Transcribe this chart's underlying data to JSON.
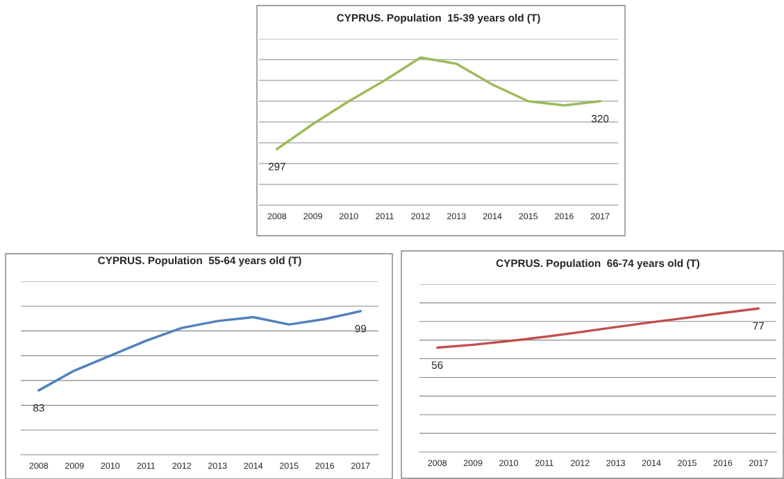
{
  "chart_data": [
    {
      "type": "line",
      "title": "CYPRUS. Population  15-39 years old (T)",
      "categories": [
        "2008",
        "2009",
        "2010",
        "2011",
        "2012",
        "2013",
        "2014",
        "2015",
        "2016",
        "2017"
      ],
      "series": [
        {
          "color": "#9bbb59",
          "values": [
            297,
            309,
            320,
            330,
            341,
            338,
            328,
            320,
            318,
            320
          ],
          "value_labels": [
            "297",
            null,
            null,
            null,
            null,
            null,
            null,
            null,
            null,
            "320"
          ]
        }
      ],
      "ylim": [
        270,
        350
      ],
      "yticks": [
        {
          "value": 280,
          "label": null
        },
        {
          "value": 290,
          "label": null
        },
        {
          "value": 300,
          "label": null
        },
        {
          "value": 310,
          "label": null
        },
        {
          "value": 320,
          "label": null
        },
        {
          "value": 330,
          "label": null
        },
        {
          "value": 340,
          "label": null
        },
        {
          "value": 350,
          "label": null
        }
      ],
      "grid": "y",
      "tick_labels": "x",
      "legend": false
    },
    {
      "type": "line",
      "title": "CYPRUS. Population  55-64 years old (T)",
      "categories": [
        "2008",
        "2009",
        "2010",
        "2011",
        "2012",
        "2013",
        "2014",
        "2015",
        "2016",
        "2017"
      ],
      "series": [
        {
          "color": "#4f81bd",
          "values": [
            83,
            87,
            90,
            93,
            95.6,
            97,
            97.8,
            96.3,
            97.4,
            99
          ],
          "value_labels": [
            "83",
            null,
            null,
            null,
            null,
            null,
            null,
            null,
            null,
            "99"
          ]
        }
      ],
      "ylim": [
        70,
        105
      ],
      "yticks": [
        {
          "value": 75,
          "label": null
        },
        {
          "value": 80,
          "label": null
        },
        {
          "value": 85,
          "label": null
        },
        {
          "value": 90,
          "label": null
        },
        {
          "value": 95,
          "label": null
        },
        {
          "value": 100,
          "label": null
        },
        {
          "value": 105,
          "label": null
        }
      ],
      "grid": "y",
      "tick_labels": "x",
      "legend": false
    },
    {
      "type": "line",
      "title": "CYPRUS. Population  66-74 years old (T)",
      "categories": [
        "2008",
        "2009",
        "2010",
        "2011",
        "2012",
        "2013",
        "2014",
        "2015",
        "2016",
        "2017"
      ],
      "series": [
        {
          "color": "#c0504d",
          "values": [
            56,
            57.5,
            59.5,
            61.7,
            64.3,
            67,
            69.6,
            72,
            74.6,
            77
          ],
          "value_labels": [
            "56",
            null,
            null,
            null,
            null,
            null,
            null,
            null,
            null,
            "77"
          ]
        }
      ],
      "ylim": [
        0,
        90
      ],
      "yticks": [
        {
          "value": 10,
          "label": null
        },
        {
          "value": 20,
          "label": null
        },
        {
          "value": 30,
          "label": null
        },
        {
          "value": 40,
          "label": null
        },
        {
          "value": 50,
          "label": null
        },
        {
          "value": 60,
          "label": null
        },
        {
          "value": 70,
          "label": null
        },
        {
          "value": 80,
          "label": null
        },
        {
          "value": 90,
          "label": null
        }
      ],
      "grid": "y",
      "tick_labels": "x",
      "legend": false
    }
  ]
}
